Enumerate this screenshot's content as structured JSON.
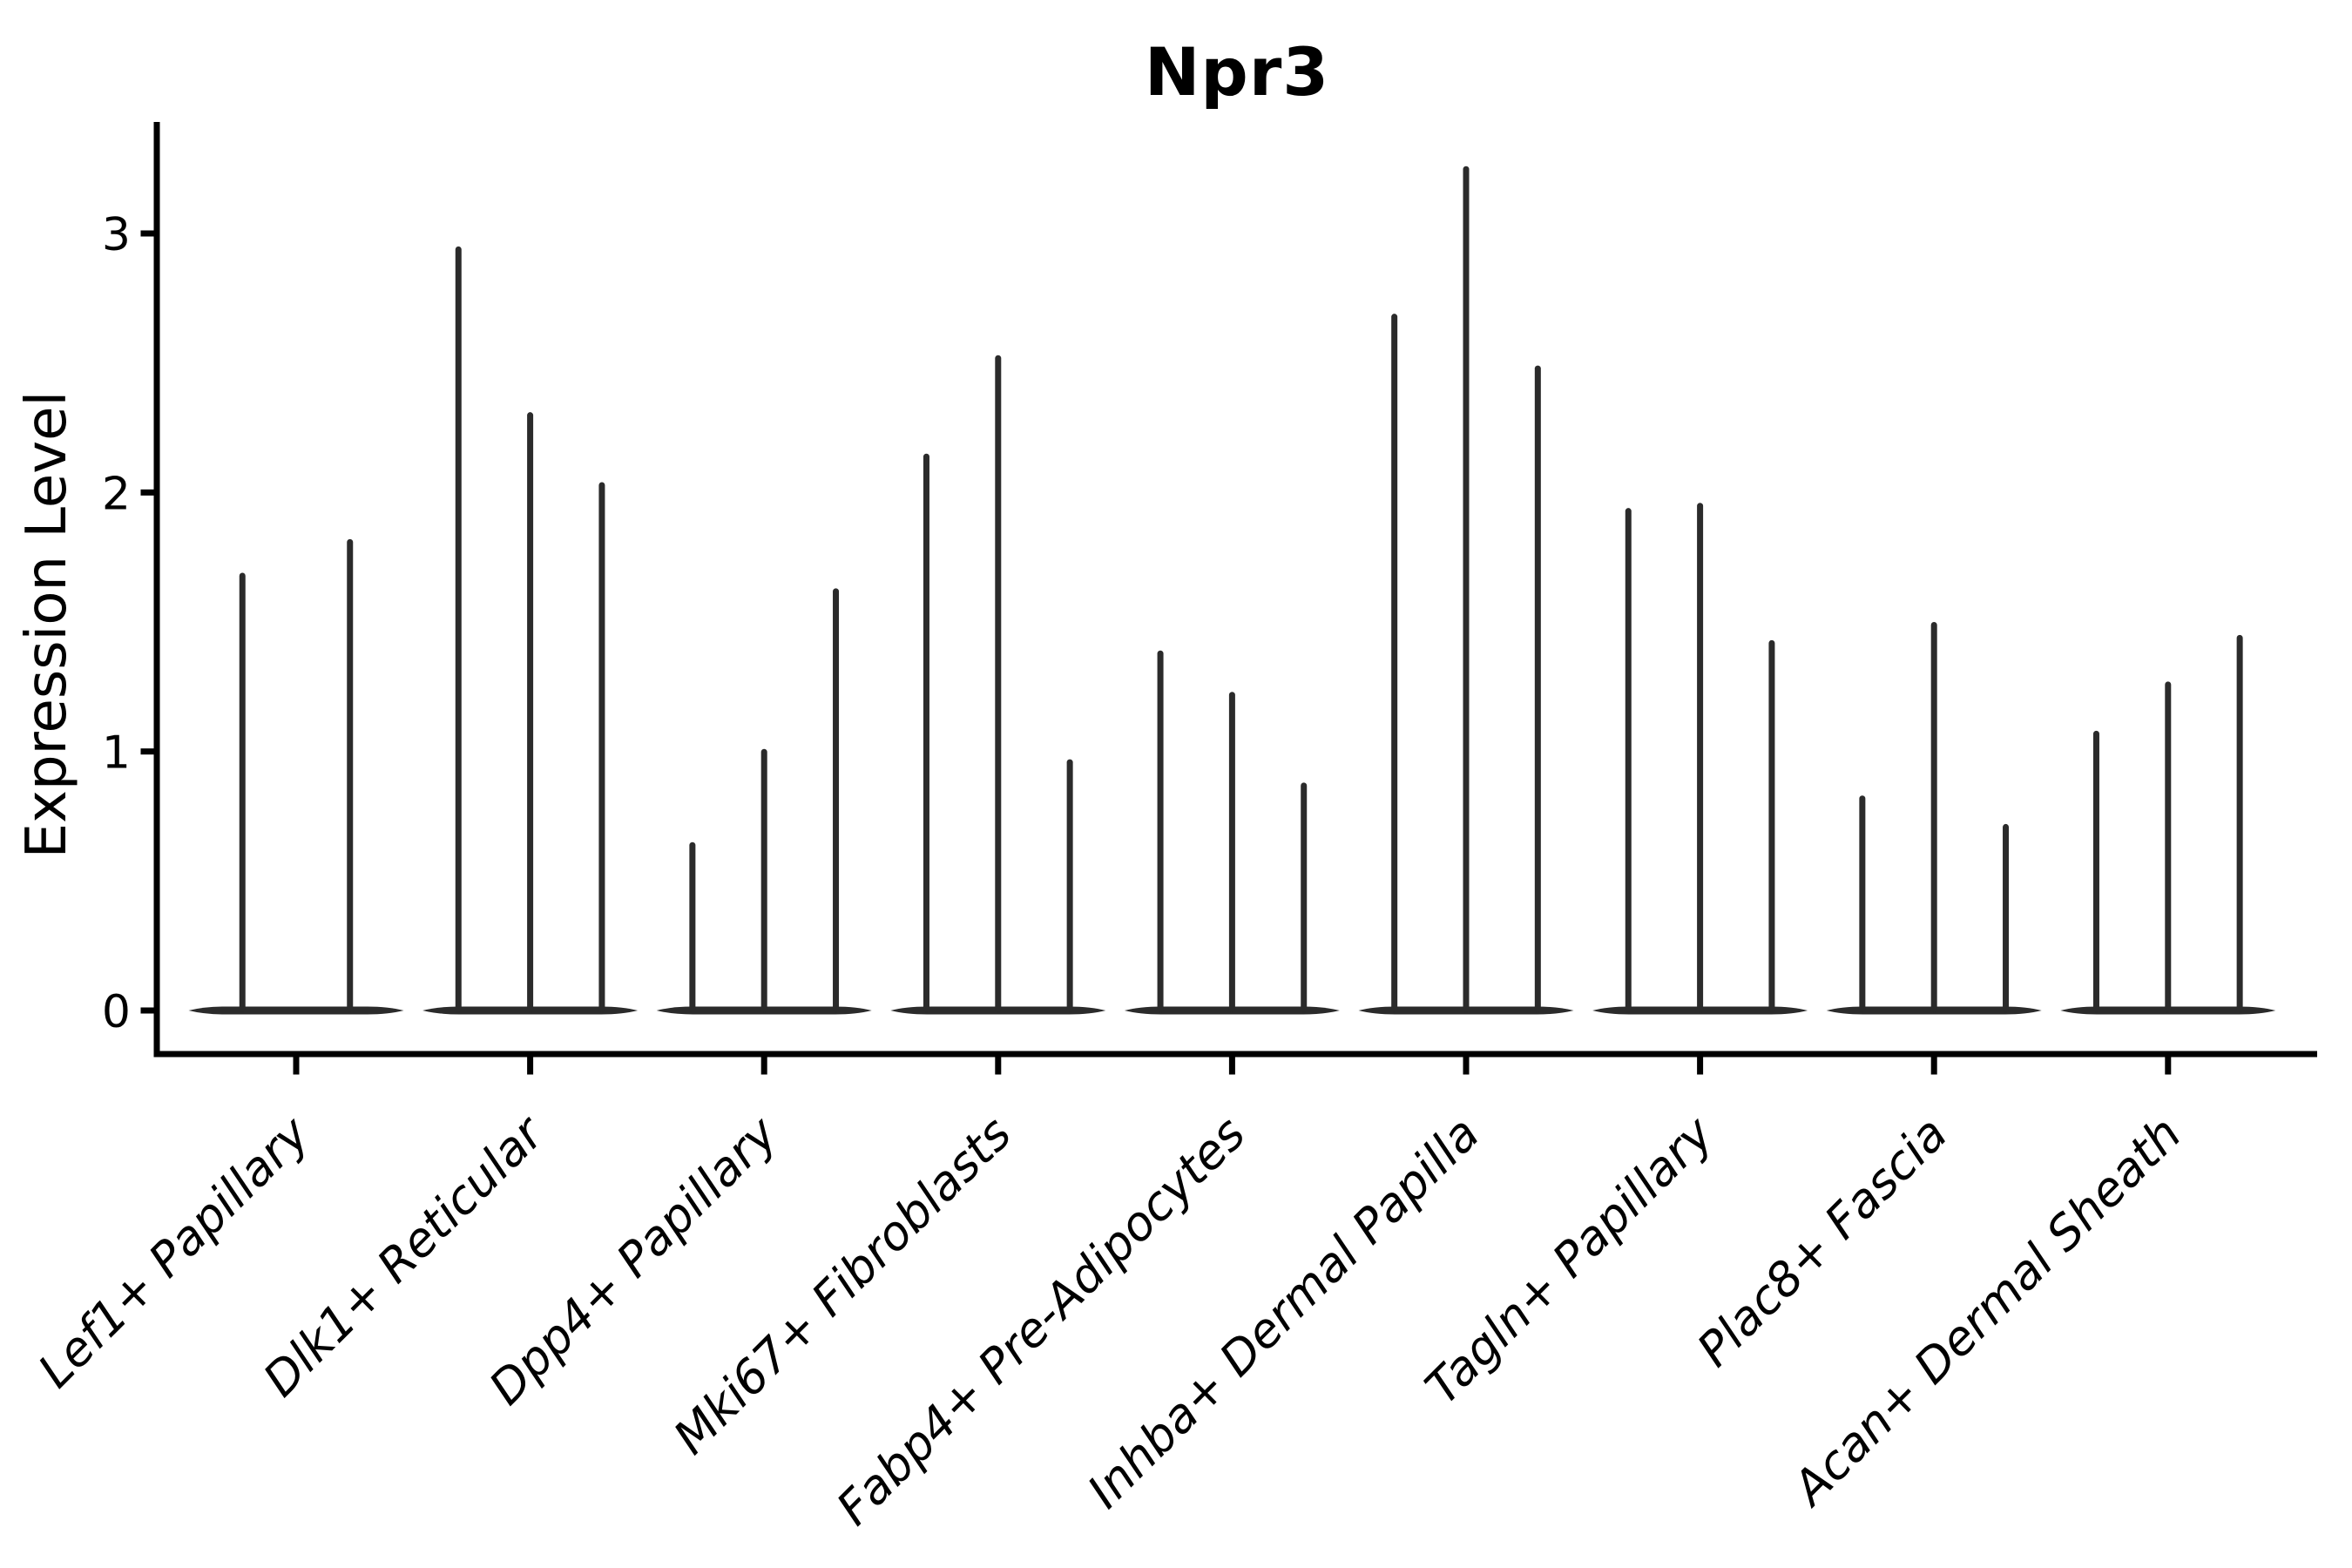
{
  "figure": {
    "title": "Npr3",
    "background": "#ffffff"
  },
  "y_axis": {
    "label": "Expression Level",
    "tick_labels": [
      "0",
      "1",
      "2",
      "3"
    ]
  },
  "chart_data": {
    "type": "violin",
    "title": "Npr3",
    "xlabel": "",
    "ylabel": "Expression Level",
    "yticks": [
      0,
      1,
      2,
      3
    ],
    "ylim": [
      -0.17,
      3.43
    ],
    "grid": false,
    "legend": "none",
    "categories": [
      "Lef1+ Papillary",
      "Dlk1+ Reticular",
      "Dpp4+ Papillary",
      "Mki67+ Fibroblasts",
      "Fabp4+ Pre-Adipocytes",
      "Inhba+ Dermal Papilla",
      "Tagln+ Papillary",
      "Plac8+ Fascia",
      "Acan+ Dermal Sheath"
    ],
    "violins_per_category": [
      2,
      3,
      3,
      3,
      3,
      3,
      3,
      3,
      3
    ],
    "violin_maxima": [
      [
        1.69,
        1.82
      ],
      [
        2.95,
        2.31,
        2.04
      ],
      [
        0.65,
        1.01,
        1.63
      ],
      [
        2.15,
        2.53,
        0.97
      ],
      [
        1.39,
        1.23,
        0.88
      ],
      [
        2.69,
        3.26,
        2.49
      ],
      [
        1.94,
        1.96,
        1.43
      ],
      [
        0.83,
        1.5,
        0.72
      ],
      [
        1.08,
        1.27,
        1.45
      ]
    ],
    "baseline_value": 0,
    "colors": {
      "violin": "#2b2b2b",
      "axis": "#000000",
      "text": "#000000",
      "background": "#ffffff"
    }
  }
}
